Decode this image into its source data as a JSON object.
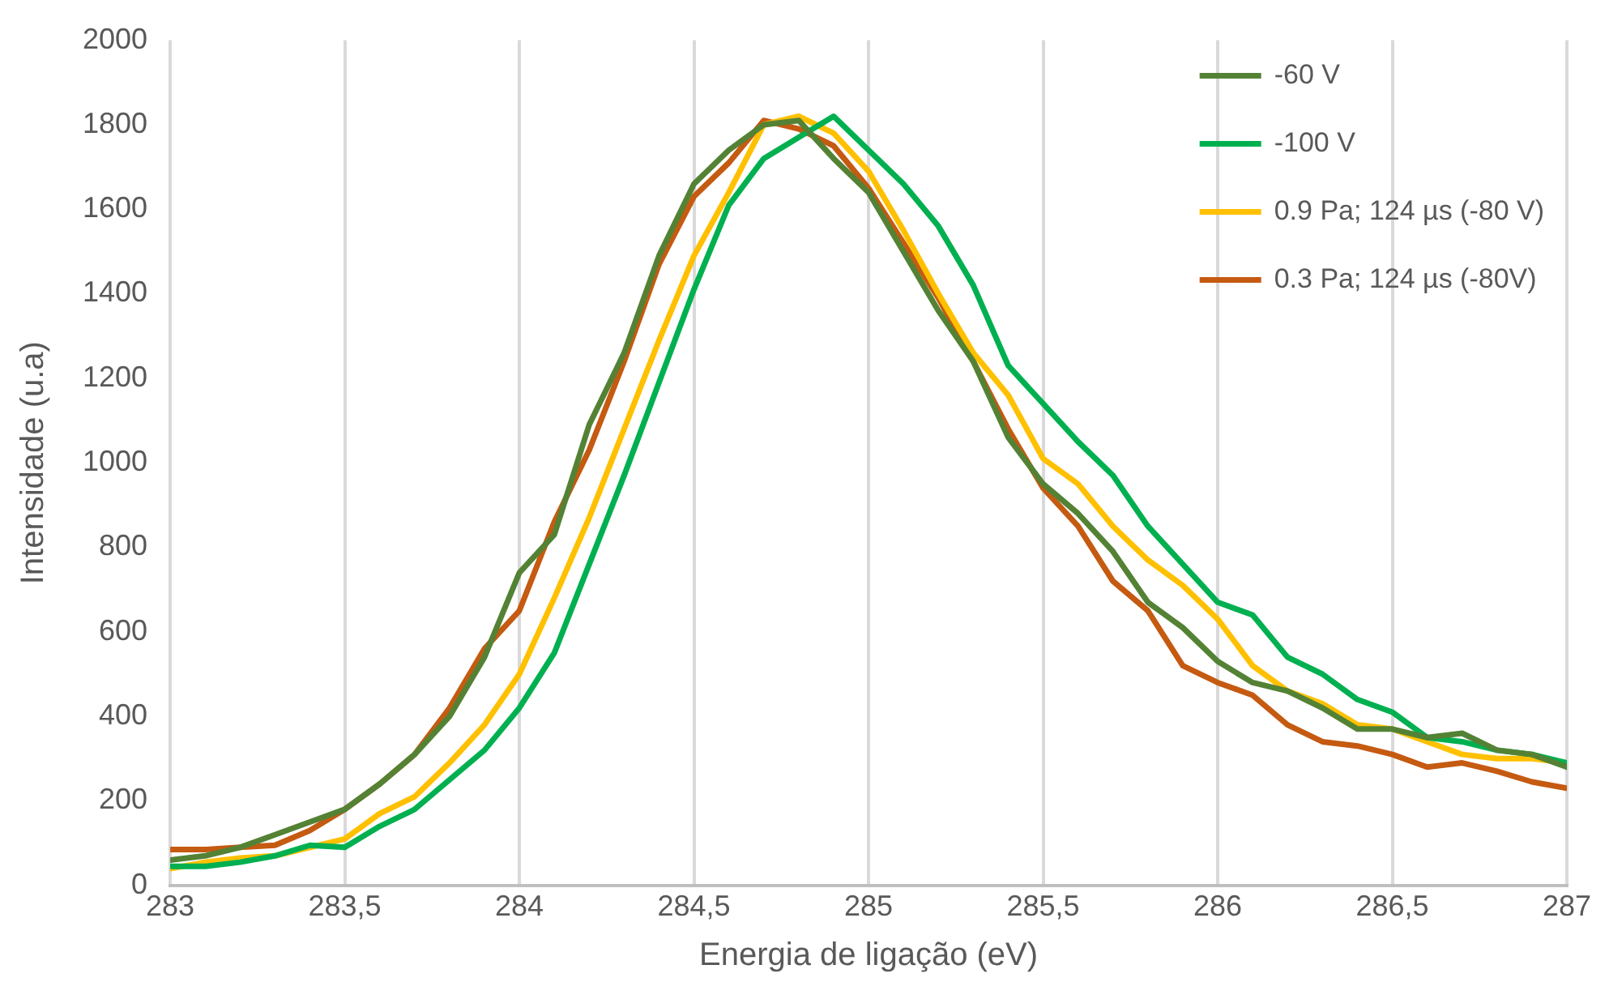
{
  "chart_data": {
    "type": "line",
    "xlabel": "Energia de ligação (eV)",
    "ylabel": "Intensidade (u.a)",
    "x": [
      283,
      283.1,
      283.2,
      283.3,
      283.4,
      283.5,
      283.6,
      283.7,
      283.8,
      283.9,
      284,
      284.1,
      284.2,
      284.3,
      284.4,
      284.5,
      284.6,
      284.7,
      284.8,
      284.9,
      285,
      285.1,
      285.2,
      285.3,
      285.4,
      285.5,
      285.6,
      285.7,
      285.8,
      285.9,
      286,
      286.1,
      286.2,
      286.3,
      286.4,
      286.5,
      286.6,
      286.7,
      286.8,
      286.9,
      287
    ],
    "series": [
      {
        "name": "-60 V",
        "color": "#548235",
        "values": [
          60,
          70,
          90,
          120,
          150,
          180,
          240,
          310,
          400,
          540,
          740,
          830,
          1090,
          1260,
          1490,
          1660,
          1740,
          1800,
          1810,
          1720,
          1640,
          1500,
          1360,
          1240,
          1060,
          950,
          880,
          790,
          670,
          610,
          530,
          480,
          460,
          420,
          370,
          370,
          350,
          360,
          320,
          310,
          280
        ]
      },
      {
        "name": "-100 V",
        "color": "#00b050",
        "values": [
          45,
          45,
          55,
          70,
          95,
          90,
          140,
          180,
          250,
          320,
          420,
          550,
          760,
          970,
          1190,
          1410,
          1610,
          1720,
          1770,
          1820,
          1740,
          1660,
          1560,
          1420,
          1230,
          1140,
          1050,
          970,
          850,
          760,
          670,
          640,
          540,
          500,
          440,
          410,
          350,
          340,
          320,
          310,
          290
        ]
      },
      {
        "name": "0.9 Pa; 124 µs (-80 V)",
        "color": "#ffc000",
        "values": [
          40,
          55,
          65,
          70,
          90,
          110,
          170,
          210,
          290,
          380,
          500,
          680,
          870,
          1080,
          1290,
          1490,
          1640,
          1800,
          1820,
          1780,
          1690,
          1550,
          1400,
          1260,
          1160,
          1010,
          950,
          850,
          770,
          710,
          630,
          520,
          460,
          430,
          380,
          370,
          340,
          310,
          300,
          300,
          290
        ]
      },
      {
        "name": "0.3 Pa; 124 µs (-80V)",
        "color": "#c55a11",
        "values": [
          85,
          85,
          90,
          95,
          130,
          180,
          240,
          310,
          420,
          560,
          650,
          860,
          1030,
          1240,
          1470,
          1630,
          1710,
          1810,
          1790,
          1750,
          1650,
          1520,
          1390,
          1240,
          1080,
          940,
          850,
          720,
          650,
          520,
          480,
          450,
          380,
          340,
          330,
          310,
          280,
          290,
          270,
          245,
          230
        ]
      }
    ],
    "xlim": [
      283,
      287
    ],
    "xticks": [
      283,
      {
        "value": 283.5,
        "label": "283,5"
      },
      284,
      {
        "value": 284.5,
        "label": "284,5"
      },
      285,
      {
        "value": 285.5,
        "label": "285,5"
      },
      286,
      {
        "value": 286.5,
        "label": "286,5"
      },
      287
    ],
    "ylim": [
      0,
      2000
    ],
    "yticks": [
      0,
      200,
      400,
      600,
      800,
      1000,
      1200,
      1400,
      1600,
      1800,
      2000
    ],
    "grid": "x",
    "legend": "top right",
    "marker": "none",
    "line_style": "solid"
  }
}
